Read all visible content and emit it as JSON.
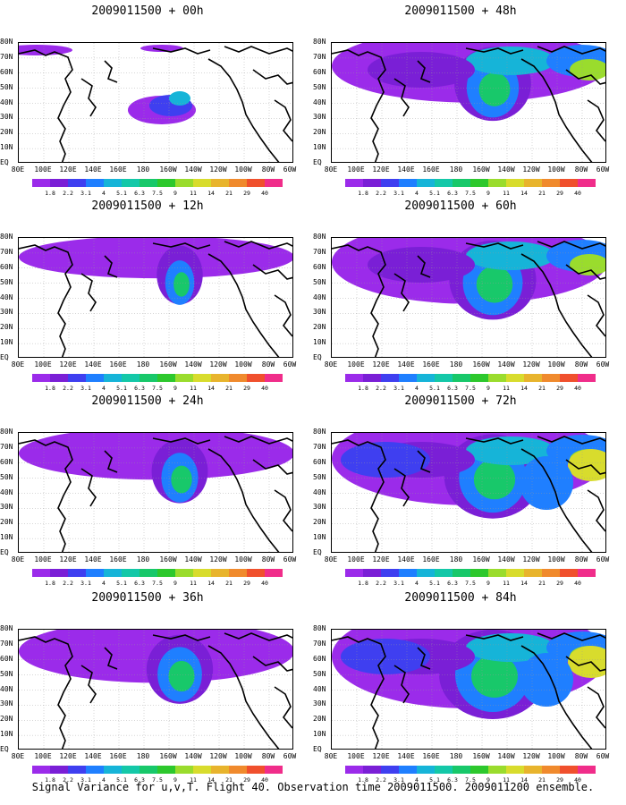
{
  "caption": "Signal Variance for u,v,T. Flight 40. Observation time 2009011500. 2009011200 ensemble.",
  "lat_labels": [
    "80N",
    "70N",
    "60N",
    "50N",
    "40N",
    "30N",
    "20N",
    "10N",
    "EQ"
  ],
  "lon_labels": [
    "80E",
    "100E",
    "120E",
    "140E",
    "160E",
    "180",
    "160W",
    "140W",
    "120W",
    "100W",
    "80W",
    "60W"
  ],
  "colorbar_labels": [
    "1.8",
    "2.2",
    "3.1",
    "4",
    "5.1",
    "6.3",
    "7.5",
    "9",
    "11",
    "14",
    "21",
    "29",
    "40"
  ],
  "colorbar_colors": [
    "#9b2bea",
    "#7a1fd6",
    "#3f3ff0",
    "#1f7fff",
    "#16b4d8",
    "#14c8a8",
    "#18c86a",
    "#2dc82d",
    "#9adc2d",
    "#d8dc2d",
    "#e8b42d",
    "#f08a2d",
    "#f0502d",
    "#f02d8a"
  ],
  "panels": [
    {
      "title": "2009011500 + 00h",
      "lead_hours": 0
    },
    {
      "title": "2009011500 + 48h",
      "lead_hours": 48
    },
    {
      "title": "2009011500 + 12h",
      "lead_hours": 12
    },
    {
      "title": "2009011500 + 60h",
      "lead_hours": 60
    },
    {
      "title": "2009011500 + 24h",
      "lead_hours": 24
    },
    {
      "title": "2009011500 + 72h",
      "lead_hours": 72
    },
    {
      "title": "2009011500 + 36h",
      "lead_hours": 36
    },
    {
      "title": "2009011500 + 84h",
      "lead_hours": 84
    }
  ]
}
